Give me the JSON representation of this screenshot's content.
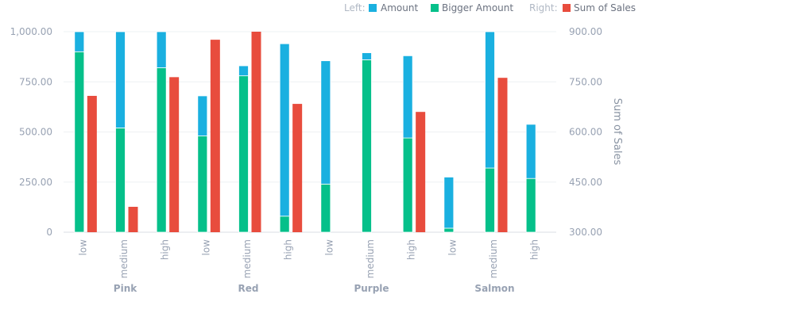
{
  "chart_data": {
    "type": "bar",
    "groups": [
      "Pink",
      "Red",
      "Purple",
      "Salmon"
    ],
    "categories": [
      "low",
      "medium",
      "high",
      "low",
      "medium",
      "high",
      "low",
      "medium",
      "high",
      "low",
      "medium",
      "high"
    ],
    "legend": {
      "left_label": "Left:",
      "right_label": "Right:",
      "position": "top-right"
    },
    "left_axis": {
      "ylim": [
        0,
        1000
      ],
      "ticks": [
        "0",
        "250.00",
        "500.00",
        "750.00",
        "1,000.00"
      ]
    },
    "right_axis": {
      "title": "Sum of Sales",
      "ylim": [
        300,
        900
      ],
      "ticks": [
        "300.00",
        "450.00",
        "600.00",
        "750.00",
        "900.00"
      ]
    },
    "series": [
      {
        "name": "Amount",
        "axis": "left",
        "stacked": true,
        "color": "#1ab0e0",
        "values": [
          100,
          480,
          180,
          200,
          50,
          860,
          615,
          35,
          410,
          255,
          680,
          270
        ]
      },
      {
        "name": "Bigger Amount",
        "axis": "left",
        "stacked": true,
        "color": "#05c08a",
        "values": [
          900,
          520,
          820,
          480,
          780,
          80,
          240,
          860,
          470,
          20,
          320,
          268
        ]
      },
      {
        "name": "Sum of Sales",
        "axis": "right",
        "color": "#e84c3d",
        "values": [
          708,
          376,
          764,
          876,
          900,
          684,
          null,
          null,
          660,
          null,
          762,
          null
        ]
      }
    ],
    "grid": true
  }
}
